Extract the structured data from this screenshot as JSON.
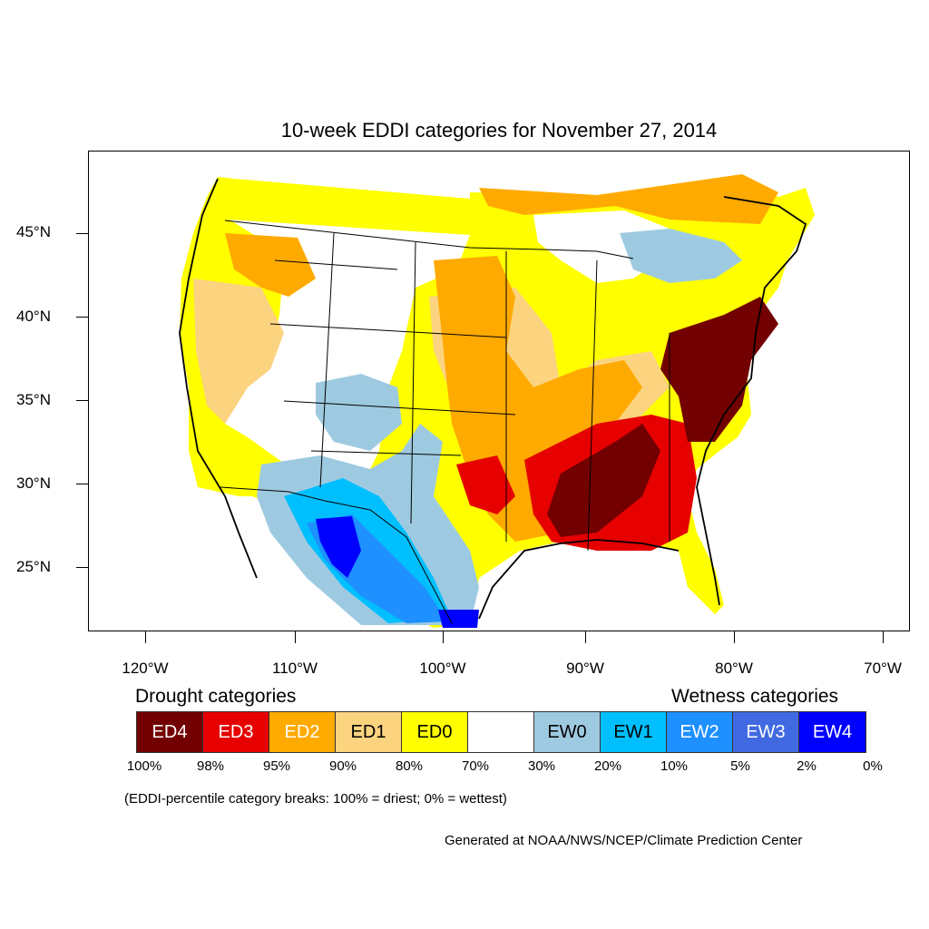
{
  "title": "10-week EDDI categories for November 27, 2014",
  "latitude_labels": [
    "45°N",
    "40°N",
    "35°N",
    "30°N",
    "25°N"
  ],
  "longitude_labels": [
    "120°W",
    "110°W",
    "100°W",
    "90°W",
    "80°W",
    "70°W"
  ],
  "legend": {
    "drought_heading": "Drought categories",
    "wetness_heading": "Wetness categories",
    "categories": [
      {
        "label": "ED4",
        "color": "#730000",
        "text_color": "#ffffff"
      },
      {
        "label": "ED3",
        "color": "#e60000",
        "text_color": "#ffffff"
      },
      {
        "label": "ED2",
        "color": "#ffaa00",
        "text_color": "#ffffff"
      },
      {
        "label": "ED1",
        "color": "#fcd37f",
        "text_color": "#000000"
      },
      {
        "label": "ED0",
        "color": "#ffff00",
        "text_color": "#000000"
      },
      {
        "label": "",
        "color": "#ffffff",
        "text_color": "#000000"
      },
      {
        "label": "EW0",
        "color": "#9ecae1",
        "text_color": "#000000"
      },
      {
        "label": "EW1",
        "color": "#00bfff",
        "text_color": "#000000"
      },
      {
        "label": "EW2",
        "color": "#1e90ff",
        "text_color": "#ffffff"
      },
      {
        "label": "EW3",
        "color": "#4169e1",
        "text_color": "#ffffff"
      },
      {
        "label": "EW4",
        "color": "#0000ff",
        "text_color": "#ffffff"
      }
    ],
    "percentiles": [
      "100%",
      "98%",
      "95%",
      "90%",
      "80%",
      "70%",
      "30%",
      "20%",
      "10%",
      "5%",
      "2%",
      "0%"
    ]
  },
  "note": "(EDDI-percentile category breaks: 100% = driest; 0% = wettest)",
  "credit": "Generated at NOAA/NWS/NCEP/Climate Prediction Center"
}
